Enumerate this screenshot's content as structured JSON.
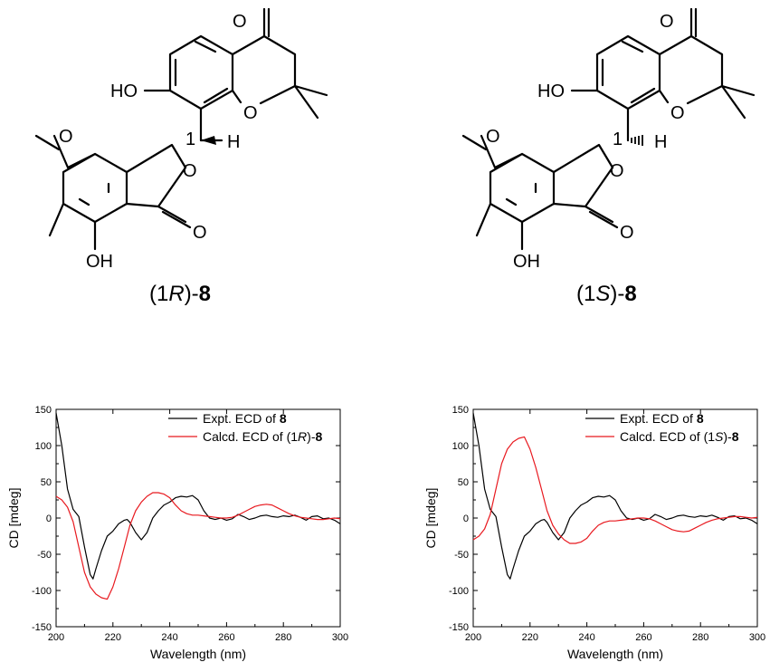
{
  "molecules": [
    {
      "id": "left",
      "label_prefix": "(1",
      "label_config": "R",
      "label_mid": ")-",
      "label_num": "8",
      "atoms": {
        "o_ketone": "O",
        "ho": "HO",
        "o_ring": "O",
        "h": "H",
        "c1": "1",
        "o_lactone": "O",
        "o_carbonyl": "O",
        "oh": "OH",
        "o_methoxy": "O"
      }
    },
    {
      "id": "right",
      "label_prefix": "(1",
      "label_config": "S",
      "label_mid": ")-",
      "label_num": "8",
      "atoms": {
        "o_ketone": "O",
        "ho": "HO",
        "o_ring": "O",
        "h": "H",
        "c1": "1",
        "o_lactone": "O",
        "o_carbonyl": "O",
        "oh": "OH",
        "o_methoxy": "O"
      }
    }
  ],
  "chart_data": [
    {
      "type": "line",
      "xlabel": "Wavelength (nm)",
      "ylabel": "CD [mdeg]",
      "xlim": [
        200,
        300
      ],
      "ylim": [
        -150,
        150
      ],
      "xticks": [
        200,
        220,
        240,
        260,
        280,
        300
      ],
      "yticks": [
        150,
        100,
        50,
        0,
        -50,
        -100,
        -150
      ],
      "legend": {
        "position": "top-right",
        "entries": [
          {
            "prefix": "Expt. ECD of ",
            "bold": "8",
            "color": "#000000"
          },
          {
            "prefix": "Calcd. ECD of (1",
            "italic": "R",
            "mid": ")-",
            "bold": "8",
            "color": "#e8191f"
          }
        ]
      },
      "series": [
        {
          "color": "#000000",
          "x": [
            200,
            202,
            204,
            206,
            208,
            210,
            212,
            213,
            214,
            216,
            218,
            220,
            222,
            224,
            225,
            226,
            228,
            230,
            232,
            234,
            236,
            238,
            240,
            242,
            244,
            246,
            248,
            250,
            252,
            254,
            256,
            258,
            260,
            262,
            264,
            266,
            268,
            270,
            272,
            274,
            276,
            278,
            280,
            282,
            284,
            286,
            288,
            290,
            292,
            294,
            296,
            298,
            300
          ],
          "y": [
            145,
            100,
            40,
            12,
            2,
            -40,
            -78,
            -84,
            -70,
            -45,
            -25,
            -18,
            -8,
            -3,
            -2,
            -6,
            -20,
            -30,
            -20,
            0,
            10,
            18,
            22,
            28,
            30,
            29,
            31,
            25,
            10,
            0,
            -2,
            0,
            -3,
            -1,
            5,
            2,
            -2,
            0,
            3,
            4,
            2,
            1,
            3,
            2,
            4,
            1,
            -3,
            2,
            3,
            -1,
            0,
            -3,
            -8
          ]
        },
        {
          "color": "#e8191f",
          "x": [
            200,
            202,
            204,
            206,
            208,
            210,
            212,
            214,
            216,
            218,
            220,
            222,
            224,
            226,
            228,
            230,
            232,
            234,
            236,
            238,
            240,
            242,
            244,
            246,
            248,
            250,
            252,
            254,
            256,
            258,
            260,
            262,
            264,
            266,
            268,
            270,
            272,
            274,
            276,
            278,
            280,
            282,
            284,
            286,
            288,
            290,
            292,
            294,
            296,
            298,
            300
          ],
          "y": [
            30,
            25,
            15,
            -5,
            -40,
            -75,
            -95,
            -105,
            -110,
            -112,
            -95,
            -70,
            -40,
            -10,
            10,
            22,
            30,
            35,
            35,
            33,
            28,
            18,
            10,
            6,
            4,
            4,
            3,
            2,
            1,
            0,
            0,
            1,
            4,
            8,
            12,
            16,
            18,
            19,
            18,
            14,
            10,
            6,
            3,
            1,
            0,
            -1,
            -2,
            -2,
            -1,
            0,
            -1
          ]
        }
      ]
    },
    {
      "type": "line",
      "xlabel": "Wavelength (nm)",
      "ylabel": "CD [mdeg]",
      "xlim": [
        200,
        300
      ],
      "ylim": [
        -150,
        150
      ],
      "xticks": [
        200,
        220,
        240,
        260,
        280,
        300
      ],
      "yticks": [
        150,
        100,
        50,
        0,
        -50,
        -100,
        -150
      ],
      "legend": {
        "position": "top-right",
        "entries": [
          {
            "prefix": "Expt. ECD of ",
            "bold": "8",
            "color": "#000000"
          },
          {
            "prefix": "Calcd. ECD of (1",
            "italic": "S",
            "mid": ")-",
            "bold": "8",
            "color": "#e8191f"
          }
        ]
      },
      "series": [
        {
          "color": "#000000",
          "x": [
            200,
            202,
            204,
            206,
            208,
            210,
            212,
            213,
            214,
            216,
            218,
            220,
            222,
            224,
            225,
            226,
            228,
            230,
            232,
            234,
            236,
            238,
            240,
            242,
            244,
            246,
            248,
            250,
            252,
            254,
            256,
            258,
            260,
            262,
            264,
            266,
            268,
            270,
            272,
            274,
            276,
            278,
            280,
            282,
            284,
            286,
            288,
            290,
            292,
            294,
            296,
            298,
            300
          ],
          "y": [
            145,
            100,
            40,
            12,
            2,
            -40,
            -78,
            -84,
            -70,
            -45,
            -25,
            -18,
            -8,
            -3,
            -2,
            -6,
            -20,
            -30,
            -20,
            0,
            10,
            18,
            22,
            28,
            30,
            29,
            31,
            25,
            10,
            0,
            -2,
            0,
            -3,
            -1,
            5,
            2,
            -2,
            0,
            3,
            4,
            2,
            1,
            3,
            2,
            4,
            1,
            -3,
            2,
            3,
            -1,
            0,
            -3,
            -8
          ]
        },
        {
          "color": "#e8191f",
          "x": [
            200,
            202,
            204,
            206,
            208,
            210,
            212,
            214,
            216,
            218,
            220,
            222,
            224,
            226,
            228,
            230,
            232,
            234,
            236,
            238,
            240,
            242,
            244,
            246,
            248,
            250,
            252,
            254,
            256,
            258,
            260,
            262,
            264,
            266,
            268,
            270,
            272,
            274,
            276,
            278,
            280,
            282,
            284,
            286,
            288,
            290,
            292,
            294,
            296,
            298,
            300
          ],
          "y": [
            -30,
            -25,
            -15,
            5,
            40,
            75,
            95,
            105,
            110,
            112,
            95,
            70,
            40,
            10,
            -10,
            -22,
            -30,
            -35,
            -35,
            -33,
            -28,
            -18,
            -10,
            -6,
            -4,
            -4,
            -3,
            -2,
            -1,
            0,
            0,
            -1,
            -4,
            -8,
            -12,
            -16,
            -18,
            -19,
            -18,
            -14,
            -10,
            -6,
            -3,
            -1,
            0,
            1,
            2,
            2,
            1,
            0,
            1
          ]
        }
      ]
    }
  ]
}
